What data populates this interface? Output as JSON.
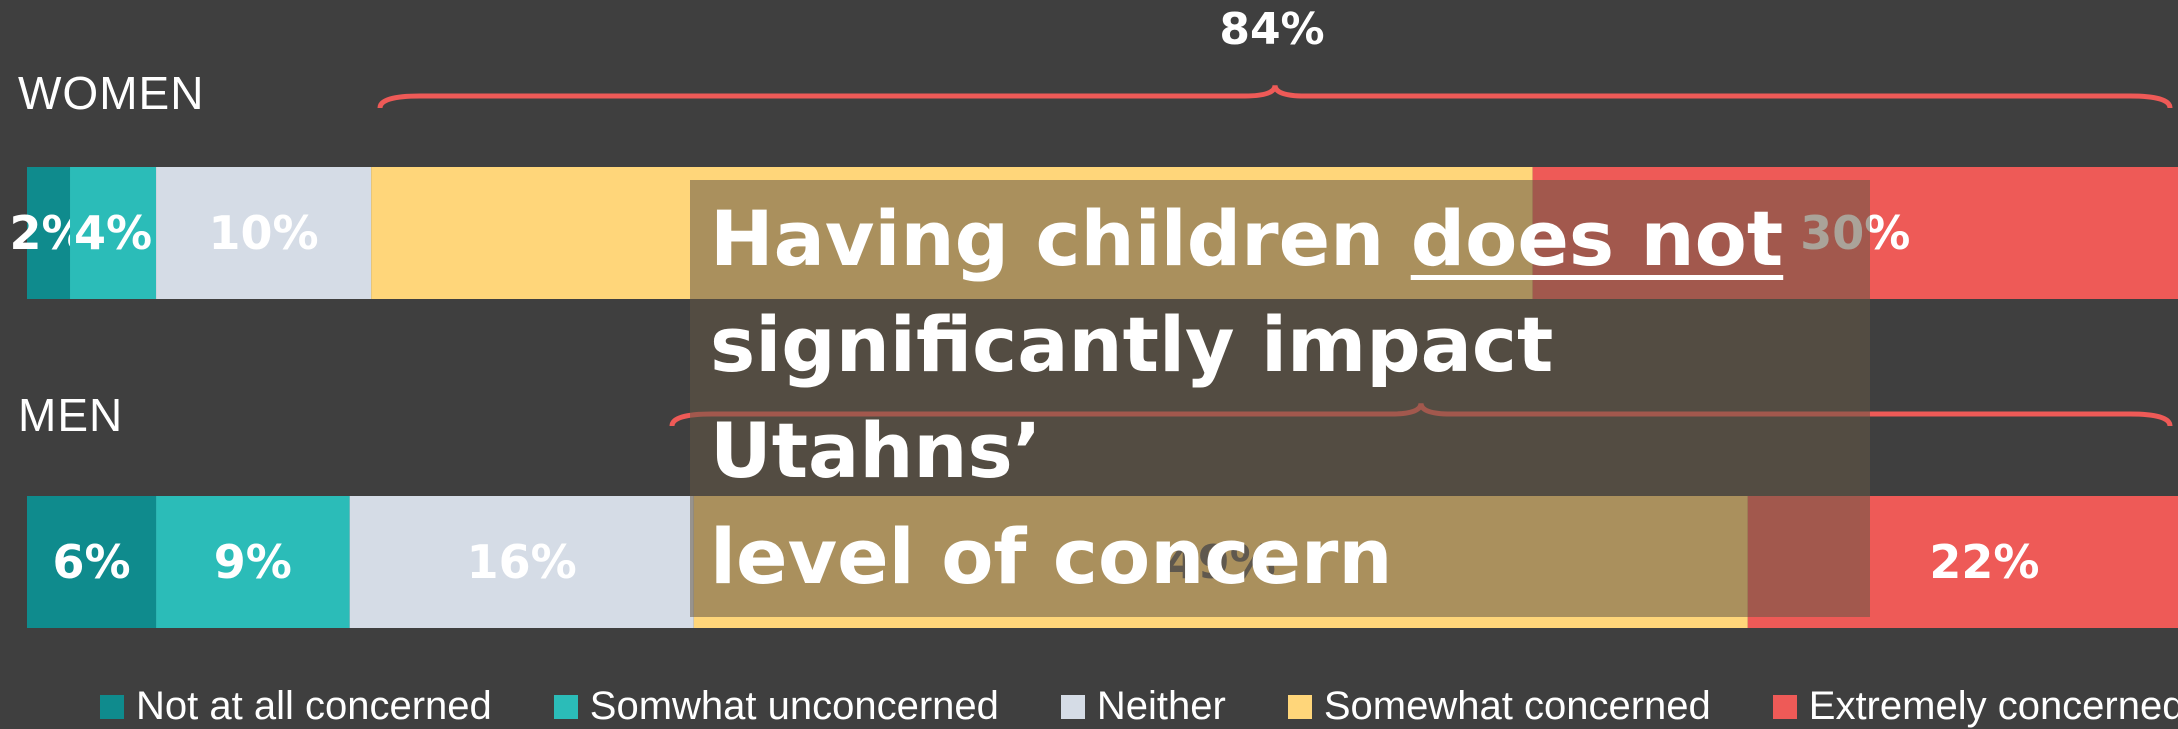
{
  "rows": [
    {
      "label": "WOMEN"
    },
    {
      "label": "MEN"
    }
  ],
  "bracket_label": "84%",
  "overlay": {
    "line1_prefix": "Having children ",
    "line1_underlined": "does not",
    "line2": "significantly impact Utahns’",
    "line3": "level of concern"
  },
  "colors": {
    "not_at_all": "#0f8b8d",
    "somewhat_unconcerned": "#2bbcb8",
    "neither": "#d5dce6",
    "somewhat_concerned": "#ffd67a",
    "extremely": "#ee5a57",
    "background": "#3f3f3f"
  },
  "chart_data": {
    "type": "bar",
    "orientation": "horizontal",
    "stacked": true,
    "categories": [
      "WOMEN",
      "MEN"
    ],
    "series": [
      {
        "name": "Not at all concerned",
        "values": [
          2,
          6
        ]
      },
      {
        "name": "Somwhat unconcerned",
        "values": [
          4,
          9
        ]
      },
      {
        "name": "Neither",
        "values": [
          10,
          16
        ]
      },
      {
        "name": "Somewhat concerned",
        "values": [
          54,
          49
        ]
      },
      {
        "name": "Extremely concerned",
        "values": [
          30,
          22
        ]
      }
    ],
    "data_labels": [
      [
        "2%",
        "4%",
        "10%",
        "",
        "30%"
      ],
      [
        "6%",
        "9%",
        "16%",
        "49%",
        "22%"
      ]
    ],
    "xlim": [
      0,
      100
    ],
    "legend_position": "bottom"
  }
}
